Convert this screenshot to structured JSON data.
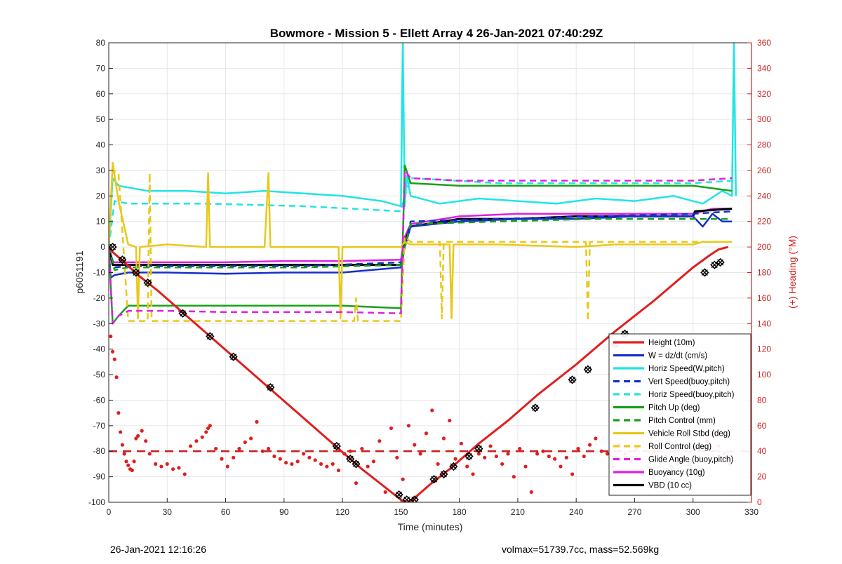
{
  "chart_data": {
    "type": "line",
    "title": "Bowmore - Mission 5 - Ellett Array 4 26-Jan-2021 07:40:29Z",
    "xlabel": "Time (minutes)",
    "ylabel": "p6051191",
    "ylabel_right": "(+) Heading (°M)",
    "xlim": [
      0,
      330
    ],
    "ylim": [
      -100,
      80
    ],
    "ylim_right": [
      0,
      360
    ],
    "xticks": [
      0,
      30,
      60,
      90,
      120,
      150,
      180,
      210,
      240,
      270,
      300,
      330
    ],
    "yticks": [
      -100,
      -90,
      -80,
      -70,
      -60,
      -50,
      -40,
      -30,
      -20,
      -10,
      0,
      10,
      20,
      30,
      40,
      50,
      60,
      70,
      80
    ],
    "yticks_right": [
      0,
      20,
      40,
      60,
      80,
      100,
      120,
      140,
      160,
      180,
      200,
      220,
      240,
      260,
      280,
      300,
      320,
      340,
      360
    ],
    "grid": true,
    "legend_position": "bottom-right",
    "heading_reference": 40,
    "series": [
      {
        "name": "Height (10m)",
        "color": "#e01e1e",
        "style": "solid",
        "width": 3,
        "x": [
          0,
          2,
          8,
          15,
          25,
          40,
          55,
          70,
          85,
          100,
          118,
          130,
          140,
          150,
          152,
          154,
          156,
          165,
          175,
          190,
          205,
          220,
          240,
          260,
          280,
          300,
          309,
          313,
          318
        ],
        "y": [
          0,
          -2,
          -6,
          -11,
          -17,
          -27,
          -37,
          -47,
          -57,
          -67,
          -79,
          -87,
          -93,
          -99,
          -100,
          -100,
          -99,
          -93,
          -87,
          -77,
          -68,
          -58,
          -46,
          -33,
          -21,
          -8,
          -3,
          -1,
          0
        ]
      },
      {
        "name": "W = dz/dt (cm/s)",
        "color": "#1430c8",
        "style": "solid",
        "width": 2.5,
        "x": [
          0,
          1,
          3,
          10,
          30,
          60,
          90,
          120,
          150,
          152,
          155,
          180,
          210,
          240,
          270,
          300,
          305,
          310,
          315,
          320
        ],
        "y": [
          0,
          -12,
          -11,
          -10,
          -10,
          -10.5,
          -10,
          -10,
          -8,
          0,
          8,
          10,
          11,
          11,
          12,
          12,
          8,
          13,
          10,
          10
        ]
      },
      {
        "name": "Horiz Speed(W,pitch)",
        "color": "#22e4e4",
        "style": "solid",
        "width": 2.5,
        "x": [
          0,
          2,
          5,
          20,
          40,
          60,
          80,
          100,
          120,
          140,
          150,
          151,
          152,
          153,
          155,
          170,
          190,
          210,
          230,
          250,
          270,
          290,
          305,
          315,
          320,
          321,
          322
        ],
        "y": [
          0,
          27,
          24,
          22,
          22,
          21,
          22,
          21,
          20,
          18,
          16,
          80,
          16,
          28,
          20,
          17,
          19,
          18,
          17,
          19,
          18,
          20,
          17,
          22,
          20,
          80,
          20
        ]
      },
      {
        "name": "Vert Speed(buoy,pitch)",
        "color": "#1430c8",
        "style": "dashed",
        "width": 2.5,
        "x": [
          0,
          3,
          10,
          50,
          100,
          150,
          152,
          155,
          200,
          250,
          300,
          320
        ],
        "y": [
          0,
          -8,
          -7.5,
          -7.5,
          -7.5,
          -6,
          0,
          10,
          11,
          12,
          13,
          14
        ]
      },
      {
        "name": "Horiz Speed(buoy,pitch)",
        "color": "#22e4e4",
        "style": "dashed",
        "width": 2.5,
        "x": [
          0,
          3,
          10,
          50,
          100,
          150,
          152,
          155,
          200,
          250,
          300,
          320
        ],
        "y": [
          0,
          18,
          17,
          17,
          16,
          14,
          20,
          27,
          25,
          25,
          25,
          26
        ]
      },
      {
        "name": "Pitch Up (deg)",
        "color": "#18a018",
        "style": "solid",
        "width": 2.5,
        "x": [
          0,
          2,
          5,
          10,
          30,
          60,
          90,
          120,
          150,
          152,
          155,
          180,
          210,
          240,
          270,
          300,
          310,
          320
        ],
        "y": [
          0,
          -30,
          -27,
          -23,
          -23,
          -23,
          -23,
          -23,
          -24,
          32,
          25,
          24,
          24,
          24,
          24,
          24,
          23,
          22
        ]
      },
      {
        "name": "Pitch Control (mm)",
        "color": "#18a018",
        "style": "dashed",
        "width": 2.5,
        "x": [
          0,
          3,
          10,
          50,
          100,
          150,
          152,
          155,
          200,
          250,
          300,
          320
        ],
        "y": [
          0,
          -9,
          -8,
          -8,
          -8,
          -7,
          0,
          9,
          10,
          11,
          11,
          11
        ]
      },
      {
        "name": "Vehicle Roll Stbd (deg)",
        "color": "#e8c81a",
        "style": "solid",
        "width": 2.5,
        "x": [
          0,
          2,
          5,
          10,
          14,
          15,
          16,
          30,
          50,
          51,
          52,
          80,
          82,
          83,
          110,
          118,
          119,
          120,
          150,
          152,
          155,
          165,
          175,
          176,
          177,
          200,
          240,
          260,
          300,
          305,
          320
        ],
        "y": [
          0,
          33,
          18,
          1,
          0,
          -28,
          0,
          1,
          0,
          29,
          0,
          0,
          29,
          0,
          0,
          0,
          -28,
          0,
          0,
          2,
          1,
          1,
          1,
          -28,
          1,
          1,
          0,
          1,
          1,
          2,
          2
        ]
      },
      {
        "name": "Roll Control (deg)",
        "color": "#e8c81a",
        "style": "dashed",
        "width": 2.5,
        "x": [
          0,
          2,
          5,
          10,
          20,
          21,
          22,
          60,
          120,
          126,
          127,
          128,
          150,
          152,
          155,
          170,
          171,
          172,
          240,
          245,
          246,
          247,
          290,
          300,
          320
        ],
        "y": [
          0,
          30,
          29,
          -29,
          -29,
          29,
          -29,
          -29,
          -29,
          -29,
          -20,
          -29,
          -29,
          4,
          2,
          2,
          -28,
          2,
          2,
          2,
          -29,
          2,
          2,
          2,
          2
        ]
      },
      {
        "name": "Glide Angle (buoy,pitch)",
        "color": "#e020e0",
        "style": "dashed",
        "width": 2.5,
        "x": [
          0,
          2,
          5,
          10,
          30,
          60,
          90,
          120,
          150,
          152,
          155,
          180,
          210,
          240,
          270,
          300,
          320
        ],
        "y": [
          0,
          -30,
          -27,
          -25,
          -25,
          -25.5,
          -25.5,
          -25.5,
          -26,
          30,
          27,
          26,
          26,
          26,
          26,
          26,
          27
        ]
      },
      {
        "name": "Buoyancy (10g)",
        "color": "#e020e0",
        "style": "solid",
        "width": 2.5,
        "x": [
          0,
          2,
          5,
          30,
          60,
          90,
          120,
          150,
          152,
          155,
          180,
          210,
          240,
          270,
          300,
          310,
          320
        ],
        "y": [
          0,
          -6,
          -6,
          -6,
          -6,
          -5.5,
          -5.5,
          -5,
          4,
          9,
          12,
          13,
          13,
          13,
          13,
          15,
          15
        ]
      },
      {
        "name": "VBD (10 cc)",
        "color": "#000000",
        "style": "solid",
        "width": 3,
        "x": [
          0,
          2,
          3,
          30,
          60,
          90,
          120,
          150,
          151,
          152,
          155,
          180,
          210,
          240,
          270,
          300,
          301,
          320
        ],
        "y": [
          0,
          -7,
          -7,
          -7,
          -7,
          -7,
          -7,
          -7,
          -4,
          2,
          8,
          11,
          11,
          12,
          12,
          12,
          14,
          15
        ]
      }
    ],
    "heading_points": {
      "name": "Heading",
      "color": "#e01e1e",
      "axis": "right",
      "x": [
        1,
        2,
        3,
        4,
        5,
        6,
        7,
        8,
        9,
        10,
        11,
        12,
        13,
        14,
        15,
        17,
        19,
        21,
        24,
        27,
        30,
        33,
        36,
        39,
        42,
        45,
        48,
        50,
        51,
        52,
        55,
        58,
        61,
        64,
        67,
        70,
        73,
        76,
        79,
        82,
        85,
        88,
        91,
        94,
        97,
        100,
        103,
        106,
        109,
        112,
        115,
        118,
        121,
        124,
        127,
        130,
        133,
        136,
        139,
        142,
        145,
        148,
        151,
        154,
        157,
        160,
        163,
        166,
        169,
        172,
        175,
        178,
        181,
        184,
        187,
        190,
        193,
        196,
        199,
        202,
        205,
        208,
        211,
        214,
        217,
        220,
        223,
        226,
        229,
        232,
        235,
        238,
        241,
        244,
        247,
        250,
        253,
        256,
        259,
        262,
        265,
        268,
        271,
        274,
        277,
        280,
        283,
        286,
        289,
        292,
        295,
        298,
        301,
        304,
        307,
        310,
        313,
        316,
        319
      ],
      "y": [
        130,
        118,
        112,
        98,
        70,
        55,
        45,
        38,
        32,
        29,
        26,
        25,
        32,
        50,
        52,
        56,
        48,
        38,
        30,
        28,
        30,
        26,
        27,
        22,
        44,
        48,
        51,
        55,
        58,
        60,
        42,
        34,
        28,
        35,
        42,
        47,
        50,
        63,
        40,
        42,
        36,
        34,
        31,
        30,
        32,
        38,
        35,
        33,
        30,
        28,
        30,
        25,
        38,
        40,
        15,
        42,
        28,
        32,
        48,
        8,
        58,
        35,
        18,
        60,
        45,
        38,
        54,
        72,
        30,
        50,
        64,
        34,
        46,
        28,
        22,
        38,
        35,
        44,
        36,
        30,
        38,
        20,
        42,
        28,
        8,
        38,
        40,
        36,
        34,
        28,
        35,
        22,
        42,
        36,
        45,
        50,
        40,
        38,
        28,
        45,
        38,
        32,
        42,
        22,
        28,
        40,
        24,
        36,
        28,
        30,
        34,
        30,
        42,
        26,
        48,
        36,
        44,
        38,
        30
      ]
    },
    "height_markers": {
      "x": [
        2,
        7,
        14,
        20,
        38,
        52,
        64,
        83,
        117,
        124,
        127,
        149,
        153,
        157,
        167,
        172,
        177,
        185,
        190,
        219,
        238,
        246,
        260,
        265,
        306,
        311,
        314
      ],
      "y": [
        0,
        -5,
        -10,
        -14,
        -26,
        -35,
        -43,
        -55,
        -78,
        -83,
        -85,
        -97,
        -99,
        -99,
        -91,
        -89,
        -86,
        -82,
        -79,
        -63,
        -52,
        -48,
        -38,
        -34,
        -10,
        -7,
        -6
      ]
    }
  },
  "footer": {
    "left": "26-Jan-2021 12:16:26",
    "right": "volmax=51739.7cc, mass=52.569kg"
  }
}
